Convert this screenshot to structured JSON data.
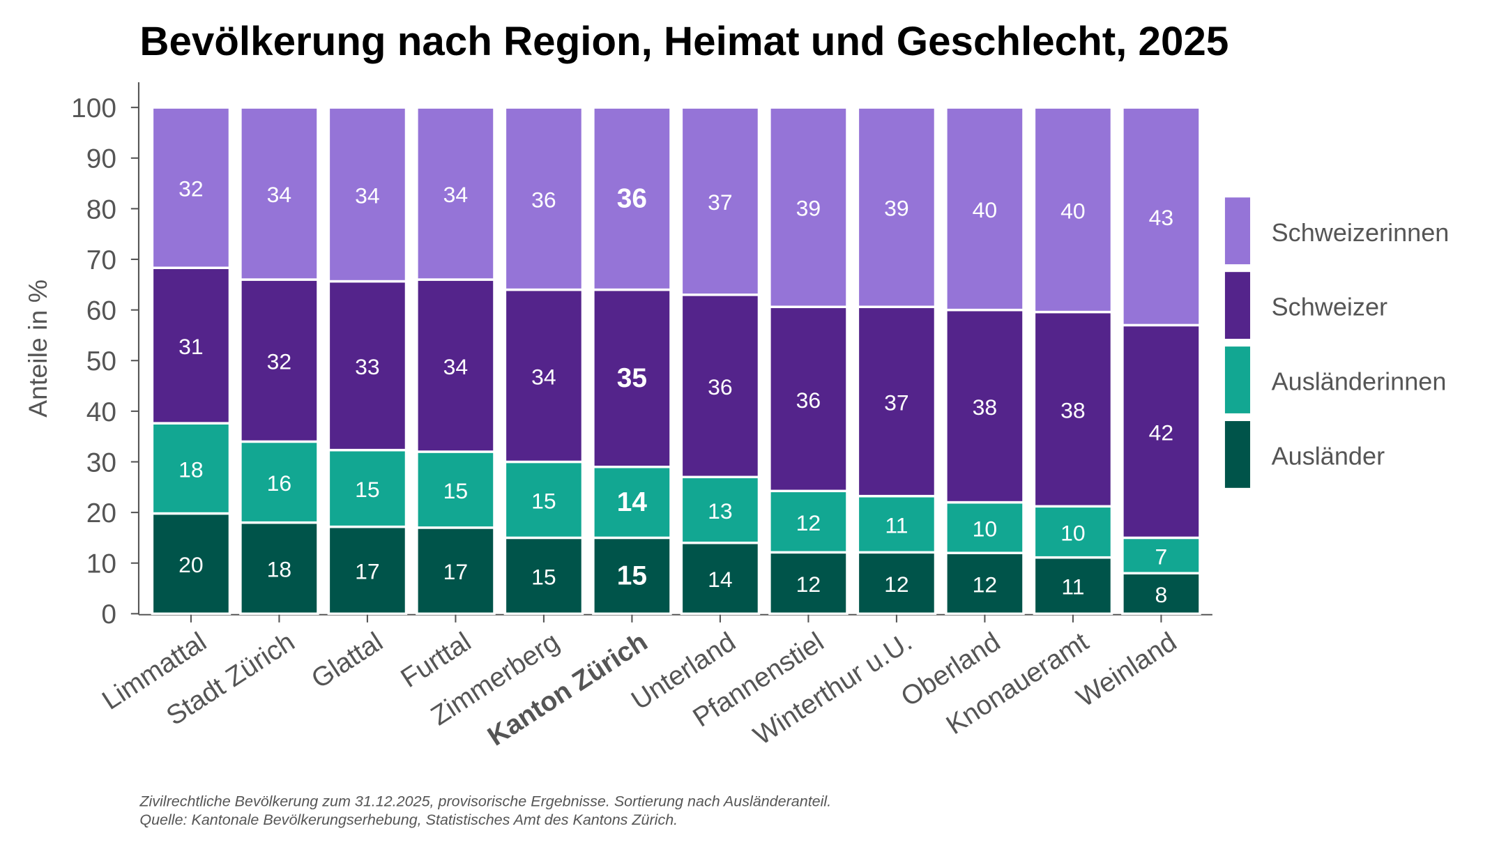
{
  "chart_data": {
    "type": "bar",
    "stacked": true,
    "title": "Bevölkerung nach Region, Heimat und Geschlecht, 2025",
    "ylabel": "Anteile in %",
    "xlabel": "",
    "ylim": [
      0,
      100
    ],
    "yticks": [
      "0",
      "10",
      "20",
      "30",
      "40",
      "50",
      "60",
      "70",
      "80",
      "90",
      "100"
    ],
    "grid": false,
    "legend_position": "right",
    "highlight_category": "Kanton Zürich",
    "categories": [
      "Limmattal",
      "Stadt Zürich",
      "Glattal",
      "Furttal",
      "Zimmerberg",
      "Kanton Zürich",
      "Unterland",
      "Pfannenstiel",
      "Winterthur u.U.",
      "Oberland",
      "Knonaueramt",
      "Weinland"
    ],
    "series": [
      {
        "name": "Ausländer",
        "color": "#00544a",
        "values": [
          20,
          18,
          17,
          17,
          15,
          15,
          14,
          12,
          12,
          12,
          11,
          8
        ]
      },
      {
        "name": "Ausländerinnen",
        "color": "#12a792",
        "values": [
          18,
          16,
          15,
          15,
          15,
          14,
          13,
          12,
          11,
          10,
          10,
          7
        ]
      },
      {
        "name": "Schweizer",
        "color": "#54248b",
        "values": [
          31,
          32,
          33,
          34,
          34,
          35,
          36,
          36,
          37,
          38,
          38,
          42
        ]
      },
      {
        "name": "Schweizerinnen",
        "color": "#9574d7",
        "values": [
          32,
          34,
          34,
          34,
          36,
          36,
          37,
          39,
          39,
          40,
          40,
          43
        ]
      }
    ],
    "footnote": [
      "Zivilrechtliche Bevölkerung zum 31.12.2025, provisorische Ergebnisse. Sortierung nach Ausländeranteil.",
      "Quelle: Kantonale Bevölkerungserhebung, Statistisches Amt des Kantons Zürich."
    ]
  }
}
